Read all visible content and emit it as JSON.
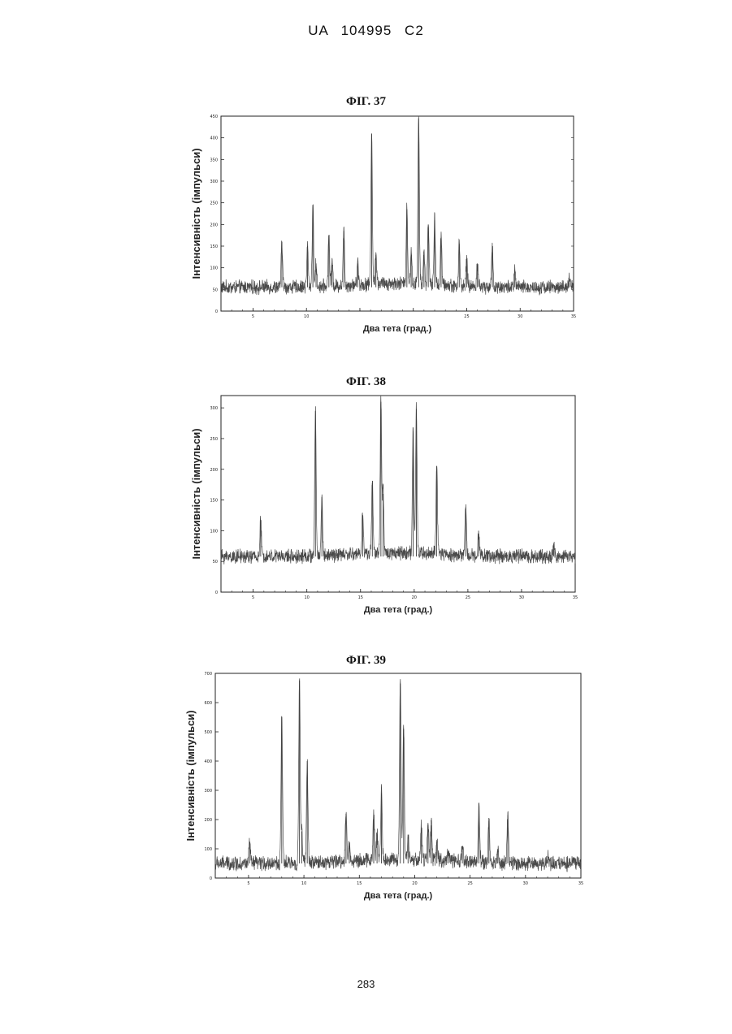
{
  "header": {
    "text": "UA   104995   C2"
  },
  "footer": {
    "page_number": "283"
  },
  "chart_data": [
    {
      "type": "line",
      "title": "ФІГ. 37",
      "xlabel": "Два тета (град.)",
      "ylabel": "Інтенсивність (імпульси)",
      "xlim": [
        2,
        35
      ],
      "ylim": [
        0,
        450
      ],
      "xticks": [
        5,
        10,
        15,
        20,
        25,
        30,
        35
      ],
      "yticks": [
        0,
        50,
        100,
        150,
        200,
        250,
        300,
        350,
        400,
        450
      ],
      "xtick_labels": [
        "5",
        "10",
        "",
        "",
        "25",
        "30",
        "35"
      ],
      "ytick_labels": [
        "0",
        "50",
        "100",
        "150",
        "200",
        "250",
        "300",
        "350",
        "400",
        "450"
      ],
      "baseline": 55,
      "peaks": [
        {
          "x": 7.7,
          "y": 160
        },
        {
          "x": 10.1,
          "y": 150
        },
        {
          "x": 10.6,
          "y": 245
        },
        {
          "x": 10.9,
          "y": 110
        },
        {
          "x": 12.1,
          "y": 175
        },
        {
          "x": 12.4,
          "y": 110
        },
        {
          "x": 13.5,
          "y": 185
        },
        {
          "x": 14.8,
          "y": 110
        },
        {
          "x": 16.1,
          "y": 410
        },
        {
          "x": 16.5,
          "y": 130
        },
        {
          "x": 19.4,
          "y": 235
        },
        {
          "x": 19.8,
          "y": 130
        },
        {
          "x": 20.5,
          "y": 445
        },
        {
          "x": 21.0,
          "y": 130
        },
        {
          "x": 21.4,
          "y": 200
        },
        {
          "x": 22.0,
          "y": 210
        },
        {
          "x": 22.6,
          "y": 170
        },
        {
          "x": 24.3,
          "y": 155
        },
        {
          "x": 25.0,
          "y": 120
        },
        {
          "x": 26.0,
          "y": 110
        },
        {
          "x": 27.4,
          "y": 150
        },
        {
          "x": 29.5,
          "y": 95
        },
        {
          "x": 34.6,
          "y": 75
        }
      ]
    },
    {
      "type": "line",
      "title": "ФІГ. 38",
      "xlabel": "Два тета (град.)",
      "ylabel": "Інтенсивність (імпульси)",
      "xlim": [
        2,
        35
      ],
      "ylim": [
        0,
        320
      ],
      "xticks": [
        5,
        10,
        15,
        20,
        25,
        30,
        35
      ],
      "yticks": [
        0,
        50,
        100,
        150,
        200,
        250,
        300
      ],
      "xtick_labels": [
        "5",
        "10",
        "15",
        "20",
        "25",
        "30",
        "35"
      ],
      "ytick_labels": [
        "0",
        "50",
        "100",
        "150",
        "200",
        "250",
        "300"
      ],
      "baseline": 58,
      "peaks": [
        {
          "x": 5.7,
          "y": 118
        },
        {
          "x": 10.8,
          "y": 295
        },
        {
          "x": 11.4,
          "y": 155
        },
        {
          "x": 15.2,
          "y": 125
        },
        {
          "x": 16.1,
          "y": 178
        },
        {
          "x": 16.9,
          "y": 310
        },
        {
          "x": 17.1,
          "y": 160
        },
        {
          "x": 19.9,
          "y": 262
        },
        {
          "x": 20.2,
          "y": 298
        },
        {
          "x": 22.1,
          "y": 205
        },
        {
          "x": 24.8,
          "y": 138
        },
        {
          "x": 26.0,
          "y": 100
        },
        {
          "x": 33.0,
          "y": 75
        }
      ]
    },
    {
      "type": "line",
      "title": "ФІГ. 39",
      "xlabel": "Два тета (град.)",
      "ylabel": "Інтенсивність (імпульси)",
      "xlim": [
        2,
        35
      ],
      "ylim": [
        0,
        700
      ],
      "xticks": [
        5,
        10,
        15,
        20,
        25,
        30,
        35
      ],
      "yticks": [
        0,
        100,
        200,
        300,
        400,
        500,
        600,
        700
      ],
      "xtick_labels": [
        "5",
        "10",
        "15",
        "20",
        "25",
        "30",
        "35"
      ],
      "ytick_labels": [
        "0",
        "100",
        "200",
        "300",
        "400",
        "500",
        "600",
        "700"
      ],
      "baseline": 50,
      "peaks": [
        {
          "x": 5.1,
          "y": 125
        },
        {
          "x": 8.0,
          "y": 550
        },
        {
          "x": 9.6,
          "y": 675
        },
        {
          "x": 9.8,
          "y": 160
        },
        {
          "x": 10.3,
          "y": 400
        },
        {
          "x": 13.8,
          "y": 220
        },
        {
          "x": 14.1,
          "y": 110
        },
        {
          "x": 16.3,
          "y": 210
        },
        {
          "x": 16.6,
          "y": 150
        },
        {
          "x": 17.0,
          "y": 290
        },
        {
          "x": 18.7,
          "y": 665
        },
        {
          "x": 19.0,
          "y": 510
        },
        {
          "x": 19.4,
          "y": 140
        },
        {
          "x": 20.6,
          "y": 165
        },
        {
          "x": 21.2,
          "y": 180
        },
        {
          "x": 21.5,
          "y": 180
        },
        {
          "x": 22.0,
          "y": 130
        },
        {
          "x": 23.0,
          "y": 90
        },
        {
          "x": 24.3,
          "y": 110
        },
        {
          "x": 25.8,
          "y": 255
        },
        {
          "x": 26.7,
          "y": 195
        },
        {
          "x": 27.5,
          "y": 100
        },
        {
          "x": 28.4,
          "y": 215
        },
        {
          "x": 32.0,
          "y": 75
        },
        {
          "x": 34.3,
          "y": 70
        }
      ]
    }
  ]
}
